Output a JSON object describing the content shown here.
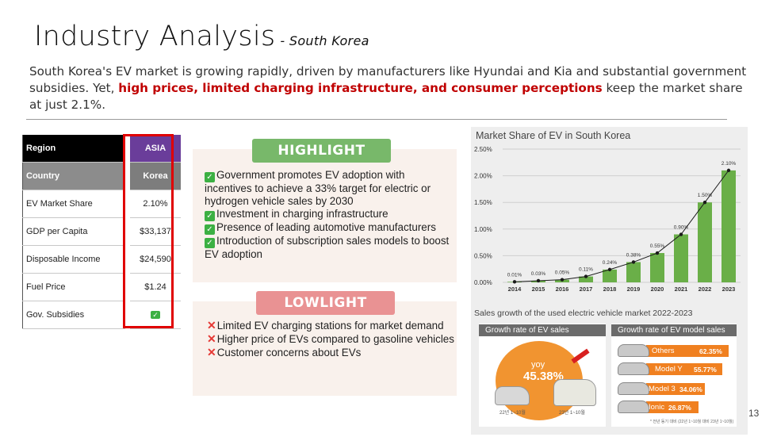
{
  "title": "Industry Analysis",
  "subtitle": "- South Korea",
  "intro": {
    "before": "South Korea's EV market is growing rapidly, driven by manufacturers like Hyundai and Kia and substantial government subsidies. Yet, ",
    "highlight": "high prices, limited charging infrastructure, and consumer perceptions",
    "after": " keep the market share at just 2.1%."
  },
  "table": {
    "rows": [
      {
        "key": "Region",
        "value": "ASIA"
      },
      {
        "key": "Country",
        "value": "Korea"
      },
      {
        "key": "EV Market Share",
        "value": "2.10%"
      },
      {
        "key": "GDP per Capita",
        "value": "$33,137"
      },
      {
        "key": "Disposable Income",
        "value": "$24,590"
      },
      {
        "key": "Fuel Price",
        "value": "$1.24"
      },
      {
        "key": "Gov. Subsidies",
        "value": "✓"
      }
    ]
  },
  "highlight": {
    "label": "HIGHLIGHT",
    "items": [
      "Government promotes EV adoption with incentives to achieve a 33% target for electric or hydrogen vehicle sales by 2030",
      "Investment in charging infrastructure",
      "Presence of leading automotive manufacturers",
      "Introduction of subscription sales models to boost EV adoption"
    ]
  },
  "lowlight": {
    "label": "LOWLIGHT",
    "items": [
      "Limited EV charging stations for market demand",
      "Higher price of EVs compared to gasoline vehicles",
      "Customer concerns about EVs"
    ]
  },
  "chart_data": {
    "type": "bar",
    "title": "Market Share of EV in South Korea",
    "categories": [
      "2014",
      "2015",
      "2016",
      "2017",
      "2018",
      "2019",
      "2020",
      "2021",
      "2022",
      "2023"
    ],
    "values": [
      0.01,
      0.03,
      0.05,
      0.11,
      0.24,
      0.38,
      0.55,
      0.9,
      1.5,
      2.1
    ],
    "data_labels": [
      "0.01%",
      "0.03%",
      "0.05%",
      "0.11%",
      "0.24%",
      "0.38%",
      "0.55%",
      "0.90%",
      "1.50%",
      "2.10%"
    ],
    "yticks": [
      "0.00%",
      "0.50%",
      "1.00%",
      "1.50%",
      "2.00%",
      "2.50%"
    ],
    "ylim": [
      0,
      2.5
    ],
    "bar_color": "#6aaf48",
    "trend_line": true,
    "grid": true
  },
  "sales": {
    "title": "Sales growth of the used electric vehicle market 2022-2023",
    "growth_box": {
      "header": "Growth rate of EV sales",
      "yoy_label": "yoy",
      "yoy_value": "45.38%",
      "caption_left": "22년 1~10월",
      "caption_right": "23년 1~10월"
    },
    "model_box": {
      "header": "Growth rate of EV model sales",
      "models": [
        {
          "name": "Others",
          "value": "62.35%"
        },
        {
          "name": "Model Y",
          "value": "55.77%"
        },
        {
          "name": "Model 3",
          "value": "34.06%"
        },
        {
          "name": "Ionic",
          "value": "26.87%"
        }
      ]
    },
    "footnote": "* 전년 동기 대비 (22년 1~10월 대비 23년 1~10월)"
  },
  "page_number": "13",
  "colors": {
    "accent_red": "#c00000",
    "highlight_green": "#78b86a",
    "lowlight_red": "#e99293"
  }
}
